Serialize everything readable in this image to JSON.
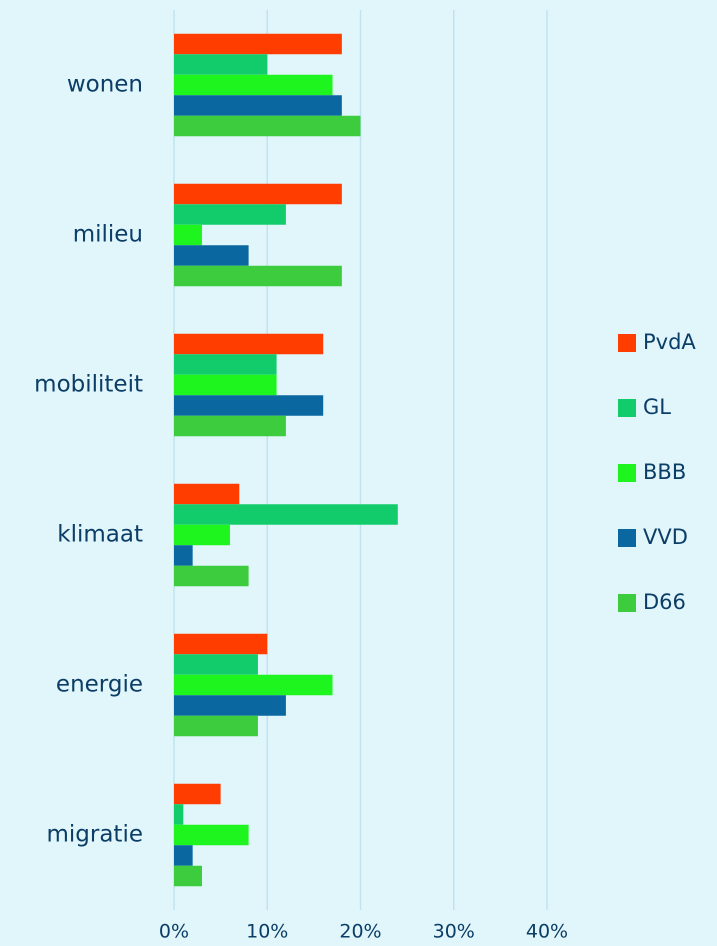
{
  "chart_data": {
    "type": "hbar",
    "categories": [
      "wonen",
      "milieu",
      "mobiliteit",
      "klimaat",
      "energie",
      "migratie"
    ],
    "series": [
      {
        "name": "PvdA",
        "color": "#ff3d00",
        "values": [
          18,
          18,
          16,
          7,
          10,
          5
        ]
      },
      {
        "name": "GL",
        "color": "#12cc6c",
        "values": [
          10,
          12,
          11,
          24,
          9,
          1
        ]
      },
      {
        "name": "BBB",
        "color": "#1ef51e",
        "values": [
          17,
          3,
          11,
          6,
          17,
          8
        ]
      },
      {
        "name": "VVD",
        "color": "#0a67a0",
        "values": [
          18,
          8,
          16,
          2,
          12,
          2
        ]
      },
      {
        "name": "D66",
        "color": "#3dcc3d",
        "values": [
          20,
          18,
          12,
          8,
          9,
          3
        ]
      }
    ],
    "xlim": [
      0,
      40
    ],
    "xticks": [
      {
        "value": 0,
        "label": "0%"
      },
      {
        "value": 10,
        "label": "10%"
      },
      {
        "value": 20,
        "label": "20%"
      },
      {
        "value": 30,
        "label": "30%"
      },
      {
        "value": 40,
        "label": "40%"
      }
    ],
    "grid": true,
    "legend": "right"
  }
}
